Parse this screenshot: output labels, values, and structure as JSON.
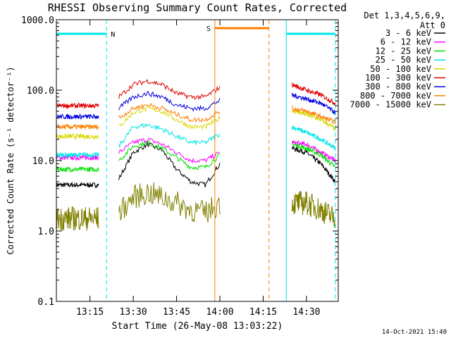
{
  "chart_data": {
    "type": "line",
    "title": "RHESSI Observing Summary Count Rates, Corrected",
    "xlabel": "Start Time (26-May-08 13:03:22)",
    "ylabel": "Corrected Count Rate (s⁻¹ detector⁻¹)",
    "y_scale": "log",
    "ylim": [
      0.1,
      1000.0
    ],
    "xlim": [
      "13:03:22",
      "14:41:00"
    ],
    "x_ticks": [
      "13:15",
      "13:30",
      "13:45",
      "14:00",
      "14:15",
      "14:30"
    ],
    "y_ticks": [
      "0.1",
      "1.0",
      "10.0",
      "100.0",
      "1000.0"
    ],
    "legend_header": [
      "Det 1,3,4,5,6,9,",
      "Att 0"
    ],
    "legend_position": "right",
    "timestamp": "14-Oct-2021 15:40",
    "flags": [
      {
        "label": "N",
        "color": "#00e5e5",
        "start": "13:03:22",
        "end": "13:20:45"
      },
      {
        "label": "S",
        "color": "#ff7f00",
        "start": "13:58:15",
        "end": "14:17:00"
      },
      {
        "label": "",
        "color": "#00e5e5",
        "start": "14:23:00",
        "end": "14:40:00"
      }
    ],
    "markers": [
      {
        "time": "13:03:22",
        "color": "#00e5e5",
        "style": "solid"
      },
      {
        "time": "13:20:45",
        "color": "#00e5e5",
        "style": "dashed"
      },
      {
        "time": "13:58:15",
        "color": "#ff7f00",
        "style": "solid"
      },
      {
        "time": "14:17:00",
        "color": "#ff7f00",
        "style": "dashed"
      },
      {
        "time": "14:23:00",
        "color": "#00e5e5",
        "style": "solid"
      },
      {
        "time": "14:40:00",
        "color": "#00e5e5",
        "style": "dashed"
      }
    ],
    "gap": [
      "14:02:00",
      "14:20:30"
    ],
    "x": [
      "13:03:22",
      "13:10:00",
      "13:18:00",
      "13:20:45",
      "13:25:00",
      "13:30:00",
      "13:35:00",
      "13:40:00",
      "13:45:00",
      "13:50:00",
      "13:55:00",
      "14:00:00",
      "14:02:00",
      "14:20:30",
      "14:25:00",
      "14:30:00",
      "14:35:00",
      "14:40:00"
    ],
    "series": [
      {
        "name": "3 - 6 keV",
        "color": "#000000",
        "values": [
          4.5,
          4.5,
          4.5,
          null,
          5.5,
          13,
          17,
          14,
          7.5,
          5,
          4.5,
          9,
          null,
          null,
          15,
          13,
          9,
          5
        ]
      },
      {
        "name": "6 - 12 keV",
        "color": "#ff00ff",
        "values": [
          11,
          11,
          11,
          null,
          13,
          18,
          20,
          17,
          13,
          10,
          10,
          13,
          null,
          null,
          18,
          17,
          13,
          10
        ]
      },
      {
        "name": "12 - 25 keV",
        "color": "#00e000",
        "values": [
          7.5,
          7.5,
          7.5,
          null,
          10,
          16,
          18,
          15,
          11,
          8,
          8,
          12,
          null,
          null,
          17,
          15,
          12,
          8
        ]
      },
      {
        "name": "25 - 50 keV",
        "color": "#00e5e5",
        "values": [
          12,
          12,
          12,
          null,
          16,
          30,
          32,
          28,
          22,
          18,
          18,
          24,
          null,
          null,
          30,
          25,
          20,
          15
        ]
      },
      {
        "name": "50 - 100 keV",
        "color": "#d8d800",
        "values": [
          22,
          22,
          22,
          null,
          30,
          48,
          55,
          50,
          38,
          30,
          30,
          40,
          null,
          null,
          52,
          45,
          38,
          28
        ]
      },
      {
        "name": "100 - 300 keV",
        "color": "#e00000",
        "values": [
          60,
          60,
          60,
          null,
          80,
          120,
          135,
          120,
          90,
          80,
          80,
          110,
          null,
          null,
          120,
          100,
          85,
          65
        ]
      },
      {
        "name": "300 - 800 keV",
        "color": "#0000e0",
        "values": [
          42,
          42,
          42,
          null,
          55,
          80,
          90,
          80,
          62,
          55,
          55,
          72,
          null,
          null,
          85,
          75,
          65,
          48
        ]
      },
      {
        "name": "800 - 7000 keV",
        "color": "#ff7f00",
        "values": [
          30,
          30,
          30,
          null,
          40,
          55,
          62,
          55,
          45,
          38,
          38,
          50,
          null,
          null,
          55,
          50,
          42,
          35
        ]
      },
      {
        "name": "7000 - 15000 keV",
        "color": "#808000",
        "values": [
          1.5,
          1.5,
          1.5,
          null,
          1.8,
          3,
          3.5,
          3,
          2.5,
          2,
          1.8,
          2.5,
          null,
          null,
          2.5,
          2.5,
          2,
          1.5
        ]
      }
    ]
  }
}
